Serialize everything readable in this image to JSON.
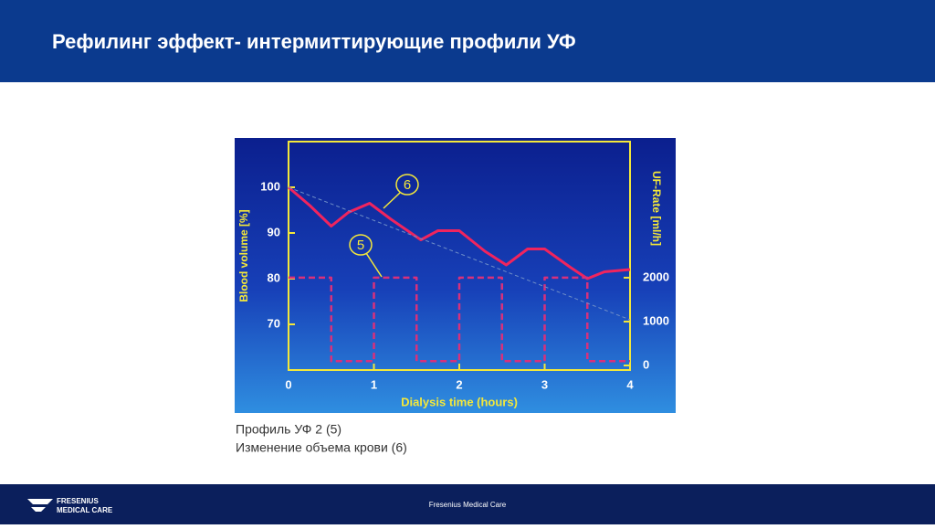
{
  "header": {
    "title": "Рефилинг эффект- интермиттирующие профили УФ"
  },
  "chart_data": {
    "type": "line",
    "xlabel": "Dialysis time  (hours)",
    "ylabel": "Blood volume  [%]",
    "y2label": "UF-Rate [ml/h]",
    "xlim": [
      0,
      4
    ],
    "xticks": [
      0,
      1,
      2,
      3,
      4
    ],
    "ylim": [
      61,
      110
    ],
    "yticks": [
      70,
      80,
      90,
      100
    ],
    "y2lim": [
      0,
      5100
    ],
    "y2ticks": [
      0,
      1000,
      2000
    ],
    "series": [
      {
        "name": "6",
        "color": "#f0245e",
        "x": [
          0,
          0.25,
          0.5,
          0.7,
          0.95,
          1.2,
          1.55,
          1.75,
          2.0,
          2.3,
          2.55,
          2.8,
          3.0,
          3.3,
          3.5,
          3.7,
          4.0
        ],
        "values": [
          100,
          96,
          91.5,
          94.5,
          96.5,
          93,
          88.5,
          90.5,
          90.5,
          86,
          83,
          86.5,
          86.5,
          82.5,
          80,
          81.5,
          82
        ]
      },
      {
        "name": "5",
        "color": "#d8307c",
        "axis": "y2",
        "x": [
          0,
          0.5,
          0.5,
          1,
          1,
          1.5,
          1.5,
          2,
          2,
          2.5,
          2.5,
          3,
          3,
          3.5,
          3.5,
          4
        ],
        "values": [
          2000,
          2000,
          100,
          100,
          2000,
          2000,
          100,
          100,
          2000,
          2000,
          100,
          100,
          2000,
          2000,
          100,
          100
        ]
      },
      {
        "color": "#6f8fc8",
        "x": [
          0,
          4
        ],
        "values": [
          100,
          71
        ]
      }
    ]
  },
  "caption": [
    "Профиль УФ 2 (5)",
    "Изменение объема крови (6)"
  ],
  "footer": {
    "logo": [
      "FRESENIUS",
      "MEDICAL CARE"
    ],
    "text": "Fresenius Medical Care"
  }
}
